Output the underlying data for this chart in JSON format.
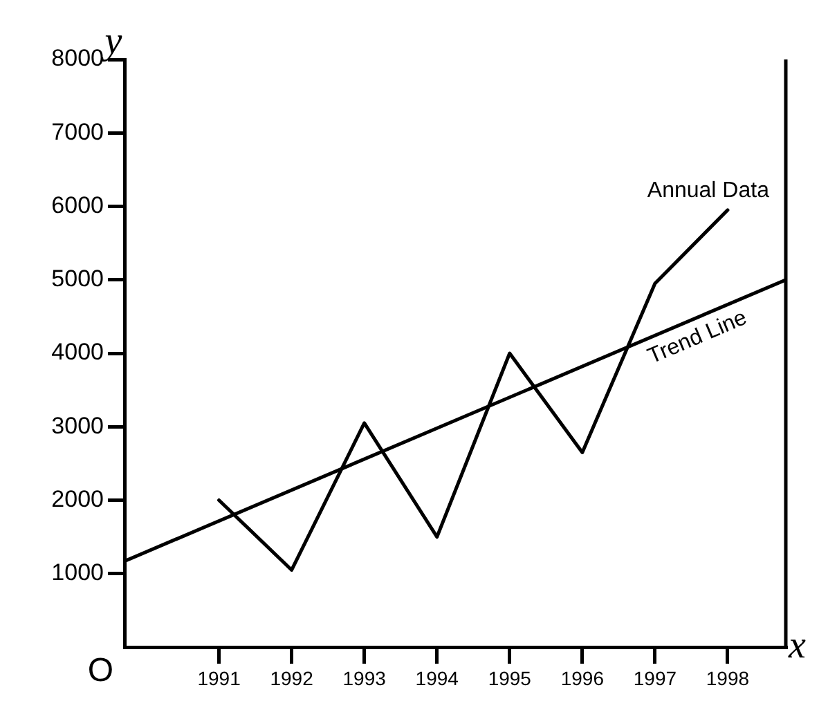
{
  "chart_data": {
    "type": "line",
    "xlabel": "x",
    "ylabel": "y",
    "annotations": [
      "O"
    ],
    "xlim": [
      1989.7,
      1998.8
    ],
    "xticks": [
      1991,
      1992,
      1993,
      1994,
      1995,
      1996,
      1997,
      1998
    ],
    "ylim": [
      0,
      8000
    ],
    "yticks": [
      1000,
      2000,
      3000,
      4000,
      5000,
      6000,
      7000,
      8000
    ],
    "grid": false,
    "legend": false,
    "marker": "none",
    "line_style": "solid",
    "series": [
      {
        "name": "Annual Data",
        "color": "#000000",
        "x": [
          1991,
          1992,
          1993,
          1994,
          1995,
          1996,
          1997,
          1998
        ],
        "values": [
          2000,
          1050,
          3050,
          1500,
          4000,
          2650,
          4950,
          5950
        ]
      },
      {
        "name": "Trend Line",
        "color": "#000000",
        "x": [
          1989.7,
          1998.8
        ],
        "values": [
          1170,
          5000
        ]
      }
    ]
  }
}
